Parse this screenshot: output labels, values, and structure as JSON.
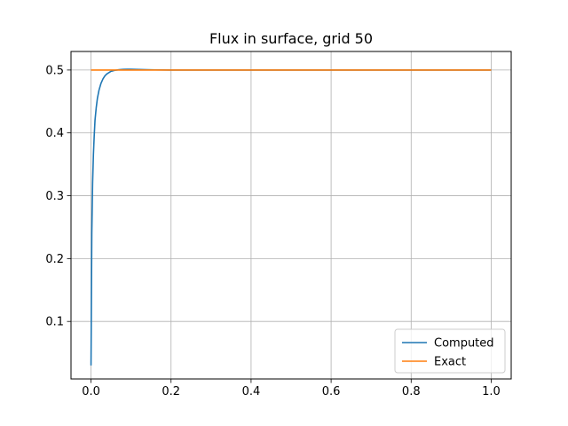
{
  "chart_data": {
    "type": "line",
    "title": "Flux in surface, grid 50",
    "xlabel": "",
    "ylabel": "",
    "xlim": [
      -0.05,
      1.05
    ],
    "ylim": [
      0.0085,
      0.5295
    ],
    "xticks": [
      0.0,
      0.2,
      0.4,
      0.6,
      0.8,
      1.0
    ],
    "xtick_labels": [
      "0.0",
      "0.2",
      "0.4",
      "0.6",
      "0.8",
      "1.0"
    ],
    "yticks": [
      0.1,
      0.2,
      0.3,
      0.4,
      0.5
    ],
    "ytick_labels": [
      "0.1",
      "0.2",
      "0.3",
      "0.4",
      "0.5"
    ],
    "grid": true,
    "legend_position": "lower-right",
    "series": [
      {
        "name": "Computed",
        "color": "#1f77b4",
        "x": [
          0.0,
          0.002,
          0.004,
          0.006,
          0.008,
          0.01,
          0.013,
          0.016,
          0.02,
          0.025,
          0.03,
          0.035,
          0.04,
          0.05,
          0.06,
          0.07,
          0.08,
          0.09,
          0.1,
          0.12,
          0.14,
          0.16,
          0.18,
          0.2,
          0.25,
          0.3,
          0.4,
          0.5,
          0.6,
          0.7,
          0.8,
          0.9,
          1.0
        ],
        "y": [
          0.03,
          0.24,
          0.32,
          0.365,
          0.395,
          0.42,
          0.44,
          0.455,
          0.468,
          0.479,
          0.486,
          0.491,
          0.494,
          0.498,
          0.4995,
          0.5005,
          0.501,
          0.5012,
          0.5012,
          0.5008,
          0.5004,
          0.5002,
          0.5001,
          0.5,
          0.5,
          0.5,
          0.5,
          0.5,
          0.5,
          0.5,
          0.5,
          0.5,
          0.5
        ]
      },
      {
        "name": "Exact",
        "color": "#ff7f0e",
        "x": [
          0.0,
          1.0
        ],
        "y": [
          0.5,
          0.5
        ]
      }
    ]
  }
}
